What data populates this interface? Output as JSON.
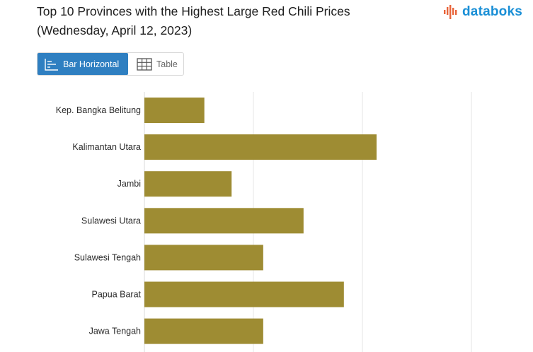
{
  "header": {
    "title_line1": "Top 10 Provinces with the Highest Large Red Chili Prices",
    "title_line2": "(Wednesday, April 12, 2023)"
  },
  "brand": {
    "logo_text": "databoks",
    "logo_color": "#1a8fd6",
    "logo_accent": "#e8643a"
  },
  "view_toggle": {
    "bar_label": "Bar Horizontal",
    "table_label": "Table",
    "active": "bar"
  },
  "chart_data": {
    "type": "bar",
    "orientation": "horizontal",
    "categories": [
      "Kep. Bangka Belitung",
      "Kalimantan Utara",
      "Jambi",
      "Sulawesi Utara",
      "Sulawesi Tengah",
      "Papua Barat",
      "Jawa Tengah"
    ],
    "values": [
      55000,
      213000,
      80000,
      146000,
      109000,
      183000,
      109000
    ],
    "xlim": [
      0,
      300000
    ],
    "grid": true,
    "bar_color": "#9e8c33",
    "title": "",
    "xlabel": "",
    "ylabel": ""
  }
}
